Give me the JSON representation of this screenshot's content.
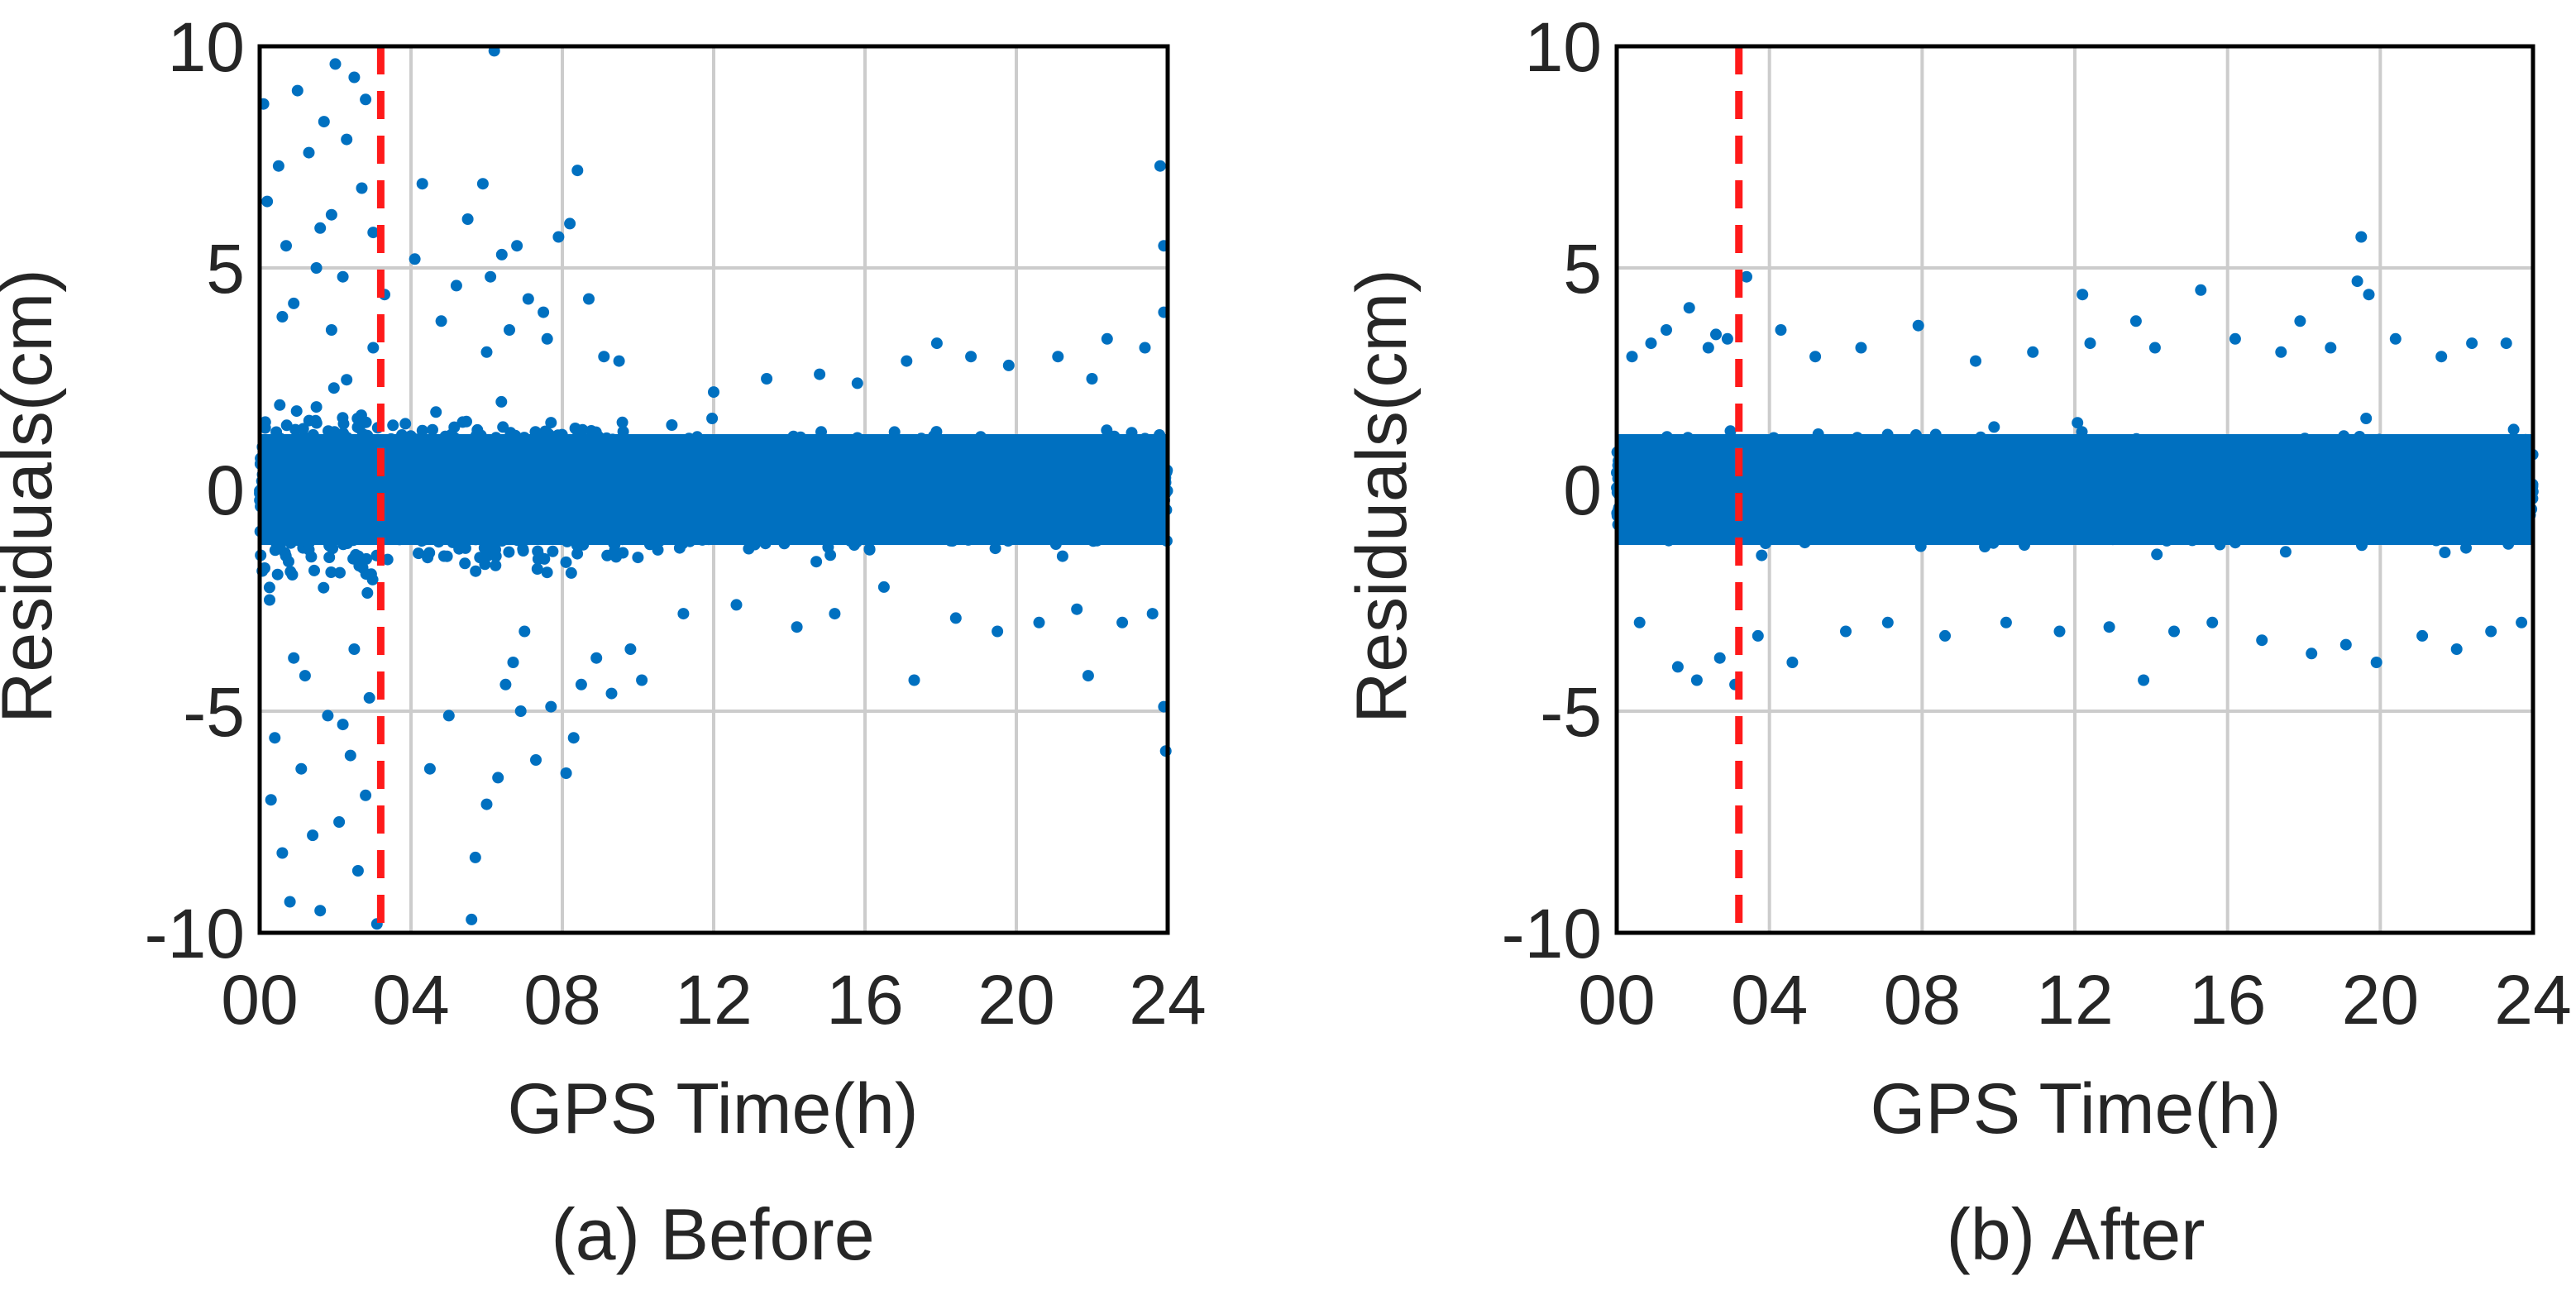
{
  "figure": {
    "series_color": "#0070c0",
    "reference_color": "#ff1a1a"
  },
  "chart_data": [
    {
      "id": "before",
      "type": "scatter",
      "caption": "(a) Before",
      "xlabel": "GPS Time(h)",
      "ylabel": "Residuals(cm)",
      "xlim": [
        0,
        24
      ],
      "ylim": [
        -10,
        10
      ],
      "xticks": [
        0,
        4,
        8,
        12,
        16,
        20,
        24
      ],
      "xtick_labels": [
        "00",
        "04",
        "08",
        "12",
        "16",
        "20",
        "24"
      ],
      "yticks": [
        -10,
        -5,
        0,
        5,
        10
      ],
      "ytick_labels": [
        "-10",
        "-5",
        "0",
        "5",
        "10"
      ],
      "grid": true,
      "reference_line": {
        "x": 3.2,
        "style": "dashed",
        "color": "#ff1a1a"
      },
      "series_name": "Residuals",
      "points": [
        [
          0.1,
          8.7
        ],
        [
          0.2,
          6.5
        ],
        [
          0.3,
          -7.0
        ],
        [
          0.5,
          7.3
        ],
        [
          0.6,
          -8.2
        ],
        [
          0.7,
          5.5
        ],
        [
          0.8,
          -9.3
        ],
        [
          0.9,
          4.2
        ],
        [
          1.0,
          9.0
        ],
        [
          1.1,
          -6.3
        ],
        [
          1.3,
          7.6
        ],
        [
          1.4,
          -7.8
        ],
        [
          1.5,
          5.0
        ],
        [
          1.6,
          -9.5
        ],
        [
          1.7,
          8.3
        ],
        [
          1.8,
          -5.1
        ],
        [
          1.9,
          6.2
        ],
        [
          2.0,
          9.6
        ],
        [
          2.1,
          -7.5
        ],
        [
          2.2,
          4.8
        ],
        [
          2.3,
          7.9
        ],
        [
          2.4,
          -6.0
        ],
        [
          2.5,
          9.3
        ],
        [
          2.6,
          -8.6
        ],
        [
          2.7,
          6.8
        ],
        [
          2.8,
          8.8
        ],
        [
          2.9,
          -4.7
        ],
        [
          3.0,
          5.8
        ],
        [
          3.1,
          -9.8
        ],
        [
          3.3,
          4.4
        ],
        [
          0.4,
          -5.6
        ],
        [
          1.2,
          -4.2
        ],
        [
          2.2,
          -5.3
        ],
        [
          1.9,
          3.6
        ],
        [
          0.9,
          -3.8
        ],
        [
          2.8,
          -6.9
        ],
        [
          3.0,
          3.2
        ],
        [
          0.6,
          3.9
        ],
        [
          1.6,
          5.9
        ],
        [
          2.5,
          -3.6
        ],
        [
          4.1,
          5.2
        ],
        [
          4.3,
          6.9
        ],
        [
          4.5,
          -6.3
        ],
        [
          4.8,
          3.8
        ],
        [
          5.0,
          -5.1
        ],
        [
          5.2,
          4.6
        ],
        [
          5.5,
          6.1
        ],
        [
          5.7,
          -8.3
        ],
        [
          5.9,
          6.9
        ],
        [
          6.0,
          -7.1
        ],
        [
          6.1,
          4.8
        ],
        [
          6.2,
          9.9
        ],
        [
          6.3,
          -6.5
        ],
        [
          6.4,
          5.3
        ],
        [
          6.5,
          -4.4
        ],
        [
          6.6,
          3.6
        ],
        [
          6.8,
          5.5
        ],
        [
          6.9,
          -5.0
        ],
        [
          7.1,
          4.3
        ],
        [
          7.3,
          -6.1
        ],
        [
          7.5,
          4.0
        ],
        [
          7.7,
          -4.9
        ],
        [
          7.9,
          5.7
        ],
        [
          8.1,
          -6.4
        ],
        [
          8.2,
          6.0
        ],
        [
          8.4,
          7.2
        ],
        [
          8.5,
          -4.4
        ],
        [
          8.7,
          4.3
        ],
        [
          8.9,
          -3.8
        ],
        [
          9.1,
          3.0
        ],
        [
          9.3,
          -4.6
        ],
        [
          9.5,
          2.9
        ],
        [
          9.8,
          -3.6
        ],
        [
          10.1,
          -4.3
        ],
        [
          5.6,
          -9.7
        ],
        [
          6.0,
          3.1
        ],
        [
          7.0,
          -3.2
        ],
        [
          7.6,
          3.4
        ],
        [
          8.3,
          -5.6
        ],
        [
          6.7,
          -3.9
        ],
        [
          11.2,
          -2.8
        ],
        [
          12.0,
          2.2
        ],
        [
          12.6,
          -2.6
        ],
        [
          13.4,
          2.5
        ],
        [
          14.2,
          -3.1
        ],
        [
          14.8,
          2.6
        ],
        [
          15.2,
          -2.8
        ],
        [
          15.8,
          2.4
        ],
        [
          16.5,
          -2.2
        ],
        [
          17.1,
          2.9
        ],
        [
          17.3,
          -4.3
        ],
        [
          17.9,
          3.3
        ],
        [
          18.4,
          -2.9
        ],
        [
          18.8,
          3.0
        ],
        [
          19.5,
          -3.2
        ],
        [
          19.8,
          2.8
        ],
        [
          20.6,
          -3.0
        ],
        [
          21.1,
          3.0
        ],
        [
          21.6,
          -2.7
        ],
        [
          21.9,
          -4.2
        ],
        [
          22.4,
          3.4
        ],
        [
          22.8,
          -3.0
        ],
        [
          23.4,
          3.2
        ],
        [
          23.8,
          7.3
        ],
        [
          23.9,
          5.5
        ],
        [
          23.9,
          -4.9
        ],
        [
          23.95,
          -5.9
        ],
        [
          23.9,
          4.0
        ],
        [
          23.6,
          -2.8
        ],
        [
          22.0,
          2.5
        ]
      ]
    },
    {
      "id": "after",
      "type": "scatter",
      "caption": "(b) After",
      "xlabel": "GPS Time(h)",
      "ylabel": "Residuals(cm)",
      "xlim": [
        0,
        24
      ],
      "ylim": [
        -10,
        10
      ],
      "xticks": [
        0,
        4,
        8,
        12,
        16,
        20,
        24
      ],
      "xtick_labels": [
        "00",
        "04",
        "08",
        "12",
        "16",
        "20",
        "24"
      ],
      "yticks": [
        -10,
        -5,
        0,
        5,
        10
      ],
      "ytick_labels": [
        "-10",
        "-5",
        "0",
        "5",
        "10"
      ],
      "grid": true,
      "reference_line": {
        "x": 3.2,
        "style": "dashed",
        "color": "#ff1a1a"
      },
      "series_name": "Residuals",
      "points": [
        [
          0.4,
          3.0
        ],
        [
          0.9,
          3.3
        ],
        [
          1.3,
          3.6
        ],
        [
          1.6,
          -4.0
        ],
        [
          1.9,
          4.1
        ],
        [
          2.1,
          -4.3
        ],
        [
          2.4,
          3.2
        ],
        [
          2.7,
          -3.8
        ],
        [
          2.9,
          3.4
        ],
        [
          3.1,
          -4.4
        ],
        [
          3.4,
          4.8
        ],
        [
          3.7,
          -3.3
        ],
        [
          4.3,
          3.6
        ],
        [
          4.6,
          -3.9
        ],
        [
          5.2,
          3.0
        ],
        [
          6.0,
          -3.2
        ],
        [
          6.4,
          3.2
        ],
        [
          7.1,
          -3.0
        ],
        [
          7.9,
          3.7
        ],
        [
          8.6,
          -3.3
        ],
        [
          9.4,
          2.9
        ],
        [
          10.2,
          -3.0
        ],
        [
          10.9,
          3.1
        ],
        [
          11.6,
          -3.2
        ],
        [
          12.2,
          4.4
        ],
        [
          12.4,
          3.3
        ],
        [
          12.9,
          -3.1
        ],
        [
          13.6,
          3.8
        ],
        [
          13.8,
          -4.3
        ],
        [
          14.1,
          3.2
        ],
        [
          14.6,
          -3.2
        ],
        [
          15.3,
          4.5
        ],
        [
          15.6,
          -3.0
        ],
        [
          16.2,
          3.4
        ],
        [
          16.9,
          -3.4
        ],
        [
          17.4,
          3.1
        ],
        [
          17.9,
          3.8
        ],
        [
          18.2,
          -3.7
        ],
        [
          18.7,
          3.2
        ],
        [
          19.1,
          -3.5
        ],
        [
          19.4,
          4.7
        ],
        [
          19.5,
          5.7
        ],
        [
          19.7,
          4.4
        ],
        [
          19.9,
          -3.9
        ],
        [
          20.4,
          3.4
        ],
        [
          21.1,
          -3.3
        ],
        [
          21.6,
          3.0
        ],
        [
          22.0,
          -3.6
        ],
        [
          22.4,
          3.3
        ],
        [
          22.9,
          -3.2
        ],
        [
          23.3,
          3.3
        ],
        [
          23.7,
          -3.0
        ],
        [
          0.6,
          -3.0
        ],
        [
          2.6,
          3.5
        ]
      ]
    }
  ]
}
